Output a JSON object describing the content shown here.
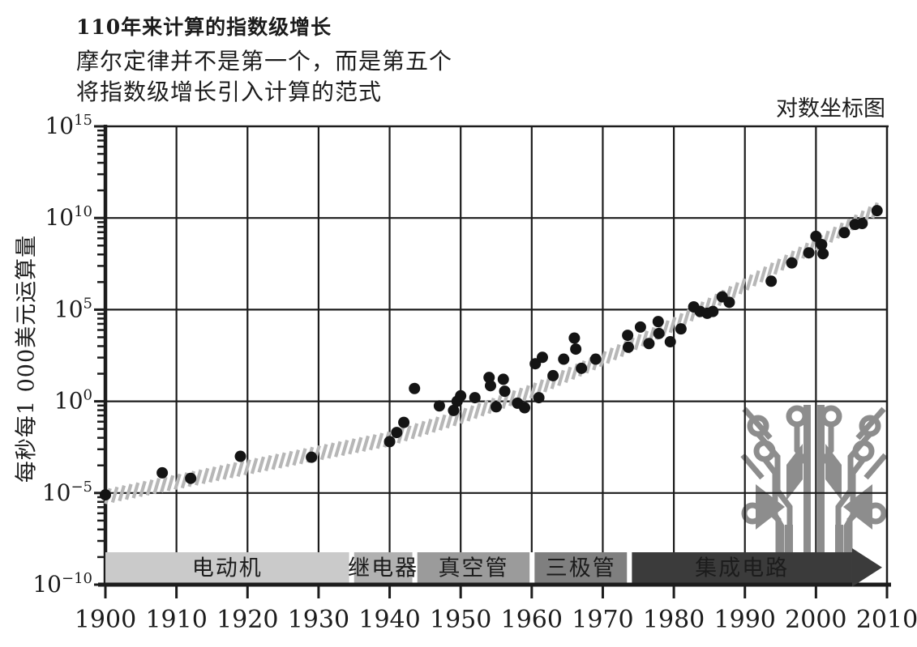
{
  "header": {
    "title": "110年来计算的指数级增长",
    "subtitle_line1": "摩尔定律并不是第一个，而是第五个",
    "subtitle_line2": "将指数级增长引入计算的范式",
    "scale_note": "对数坐标图"
  },
  "chart_data": {
    "type": "scatter",
    "title": "110年来计算的指数级增长",
    "subtitle": "摩尔定律并不是第一个，而是第五个将指数级增长引入计算的范式",
    "scale_note": "对数坐标图",
    "ylabel": "每秒每1 000美元运算量",
    "xlabel": "",
    "y_scale": "log10",
    "xlim": [
      1900,
      2010
    ],
    "y_exponent_range": [
      -10,
      15
    ],
    "grid": true,
    "x_ticks": [
      1900,
      1910,
      1920,
      1930,
      1940,
      1950,
      1960,
      1970,
      1980,
      1990,
      2000,
      2010
    ],
    "y_major_ticks": [
      {
        "exp": 15,
        "display": "10^15"
      },
      {
        "exp": 10,
        "display": "10^10"
      },
      {
        "exp": 5,
        "display": "10^5"
      },
      {
        "exp": 0,
        "display": "10^0"
      },
      {
        "exp": -5,
        "display": "10^-5"
      },
      {
        "exp": -10,
        "display": "10^-10"
      }
    ],
    "points_format": "[year, log10(calculations per second per $1000)]",
    "points": [
      [
        1900,
        -5.1
      ],
      [
        1908,
        -3.9
      ],
      [
        1912,
        -4.2
      ],
      [
        1919,
        -3.0
      ],
      [
        1929,
        -3.05
      ],
      [
        1940,
        -2.2
      ],
      [
        1941,
        -1.7
      ],
      [
        1942,
        -1.15
      ],
      [
        1943.5,
        0.7
      ],
      [
        1947,
        -0.25
      ],
      [
        1949,
        -0.5
      ],
      [
        1949.5,
        0.0
      ],
      [
        1950,
        0.3
      ],
      [
        1952,
        0.2
      ],
      [
        1954,
        1.3
      ],
      [
        1954.2,
        0.85
      ],
      [
        1955,
        -0.3
      ],
      [
        1956,
        1.2
      ],
      [
        1956.2,
        0.55
      ],
      [
        1958,
        -0.1
      ],
      [
        1959,
        -0.35
      ],
      [
        1961,
        0.2
      ],
      [
        1960.5,
        2.05
      ],
      [
        1961.5,
        2.4
      ],
      [
        1963,
        1.4
      ],
      [
        1964.5,
        2.3
      ],
      [
        1966,
        3.45
      ],
      [
        1966.2,
        2.85
      ],
      [
        1967,
        1.8
      ],
      [
        1969,
        2.3
      ],
      [
        1973.5,
        3.6
      ],
      [
        1973.6,
        2.95
      ],
      [
        1975.3,
        4.05
      ],
      [
        1976.5,
        3.15
      ],
      [
        1977.8,
        4.35
      ],
      [
        1977.9,
        3.7
      ],
      [
        1979.5,
        3.25
      ],
      [
        1981,
        3.95
      ],
      [
        1982.8,
        5.15
      ],
      [
        1983.7,
        4.9
      ],
      [
        1984.7,
        4.8
      ],
      [
        1985.5,
        4.9
      ],
      [
        1986.8,
        5.7
      ],
      [
        1987.8,
        5.4
      ],
      [
        1993.7,
        6.55
      ],
      [
        1996.6,
        7.55
      ],
      [
        1999,
        8.1
      ],
      [
        2000,
        9.0
      ],
      [
        2000.8,
        8.55
      ],
      [
        2001,
        8.05
      ],
      [
        2004,
        9.2
      ],
      [
        2005.5,
        9.65
      ],
      [
        2006.5,
        9.7
      ],
      [
        2008.6,
        10.4
      ]
    ],
    "trend_band": {
      "style": "hatched",
      "color": "#b7b7b7",
      "anchors": [
        [
          1900,
          -5.2
        ],
        [
          1920,
          -3.6
        ],
        [
          1940,
          -2.05
        ],
        [
          1950,
          -0.85
        ],
        [
          1960,
          0.55
        ],
        [
          1970,
          2.3
        ],
        [
          1980,
          4.2
        ],
        [
          1990,
          6.35
        ],
        [
          2000,
          8.55
        ],
        [
          2010,
          10.8
        ]
      ]
    },
    "eras": [
      {
        "label": "电动机",
        "start": 1900,
        "end": 1934.3,
        "bg": "#cacaca",
        "fg": "#1c1c1c",
        "arrow": false
      },
      {
        "label": "继电器",
        "start": 1935.0,
        "end": 1943.2,
        "bg": "#b1b1b1",
        "fg": "#1c1c1c",
        "arrow": false
      },
      {
        "label": "真空管",
        "start": 1943.9,
        "end": 1959.7,
        "bg": "#9b9b9b",
        "fg": "#f8f8f8",
        "arrow": false
      },
      {
        "label": "三极管",
        "start": 1960.4,
        "end": 1973.4,
        "bg": "#7f7f7f",
        "fg": "#f8f8f8",
        "arrow": false
      },
      {
        "label": "集成电路",
        "start": 1974.1,
        "end": 2009.2,
        "bg": "#3b3b3b",
        "fg": "#ffffff",
        "arrow": true
      }
    ],
    "colors": {
      "point": "#141414",
      "grid": "#1c1c1c",
      "hatch": "#b7b7b7",
      "circuit_icon": "#8d8d8d"
    },
    "icon": "circuit-board-icon"
  }
}
